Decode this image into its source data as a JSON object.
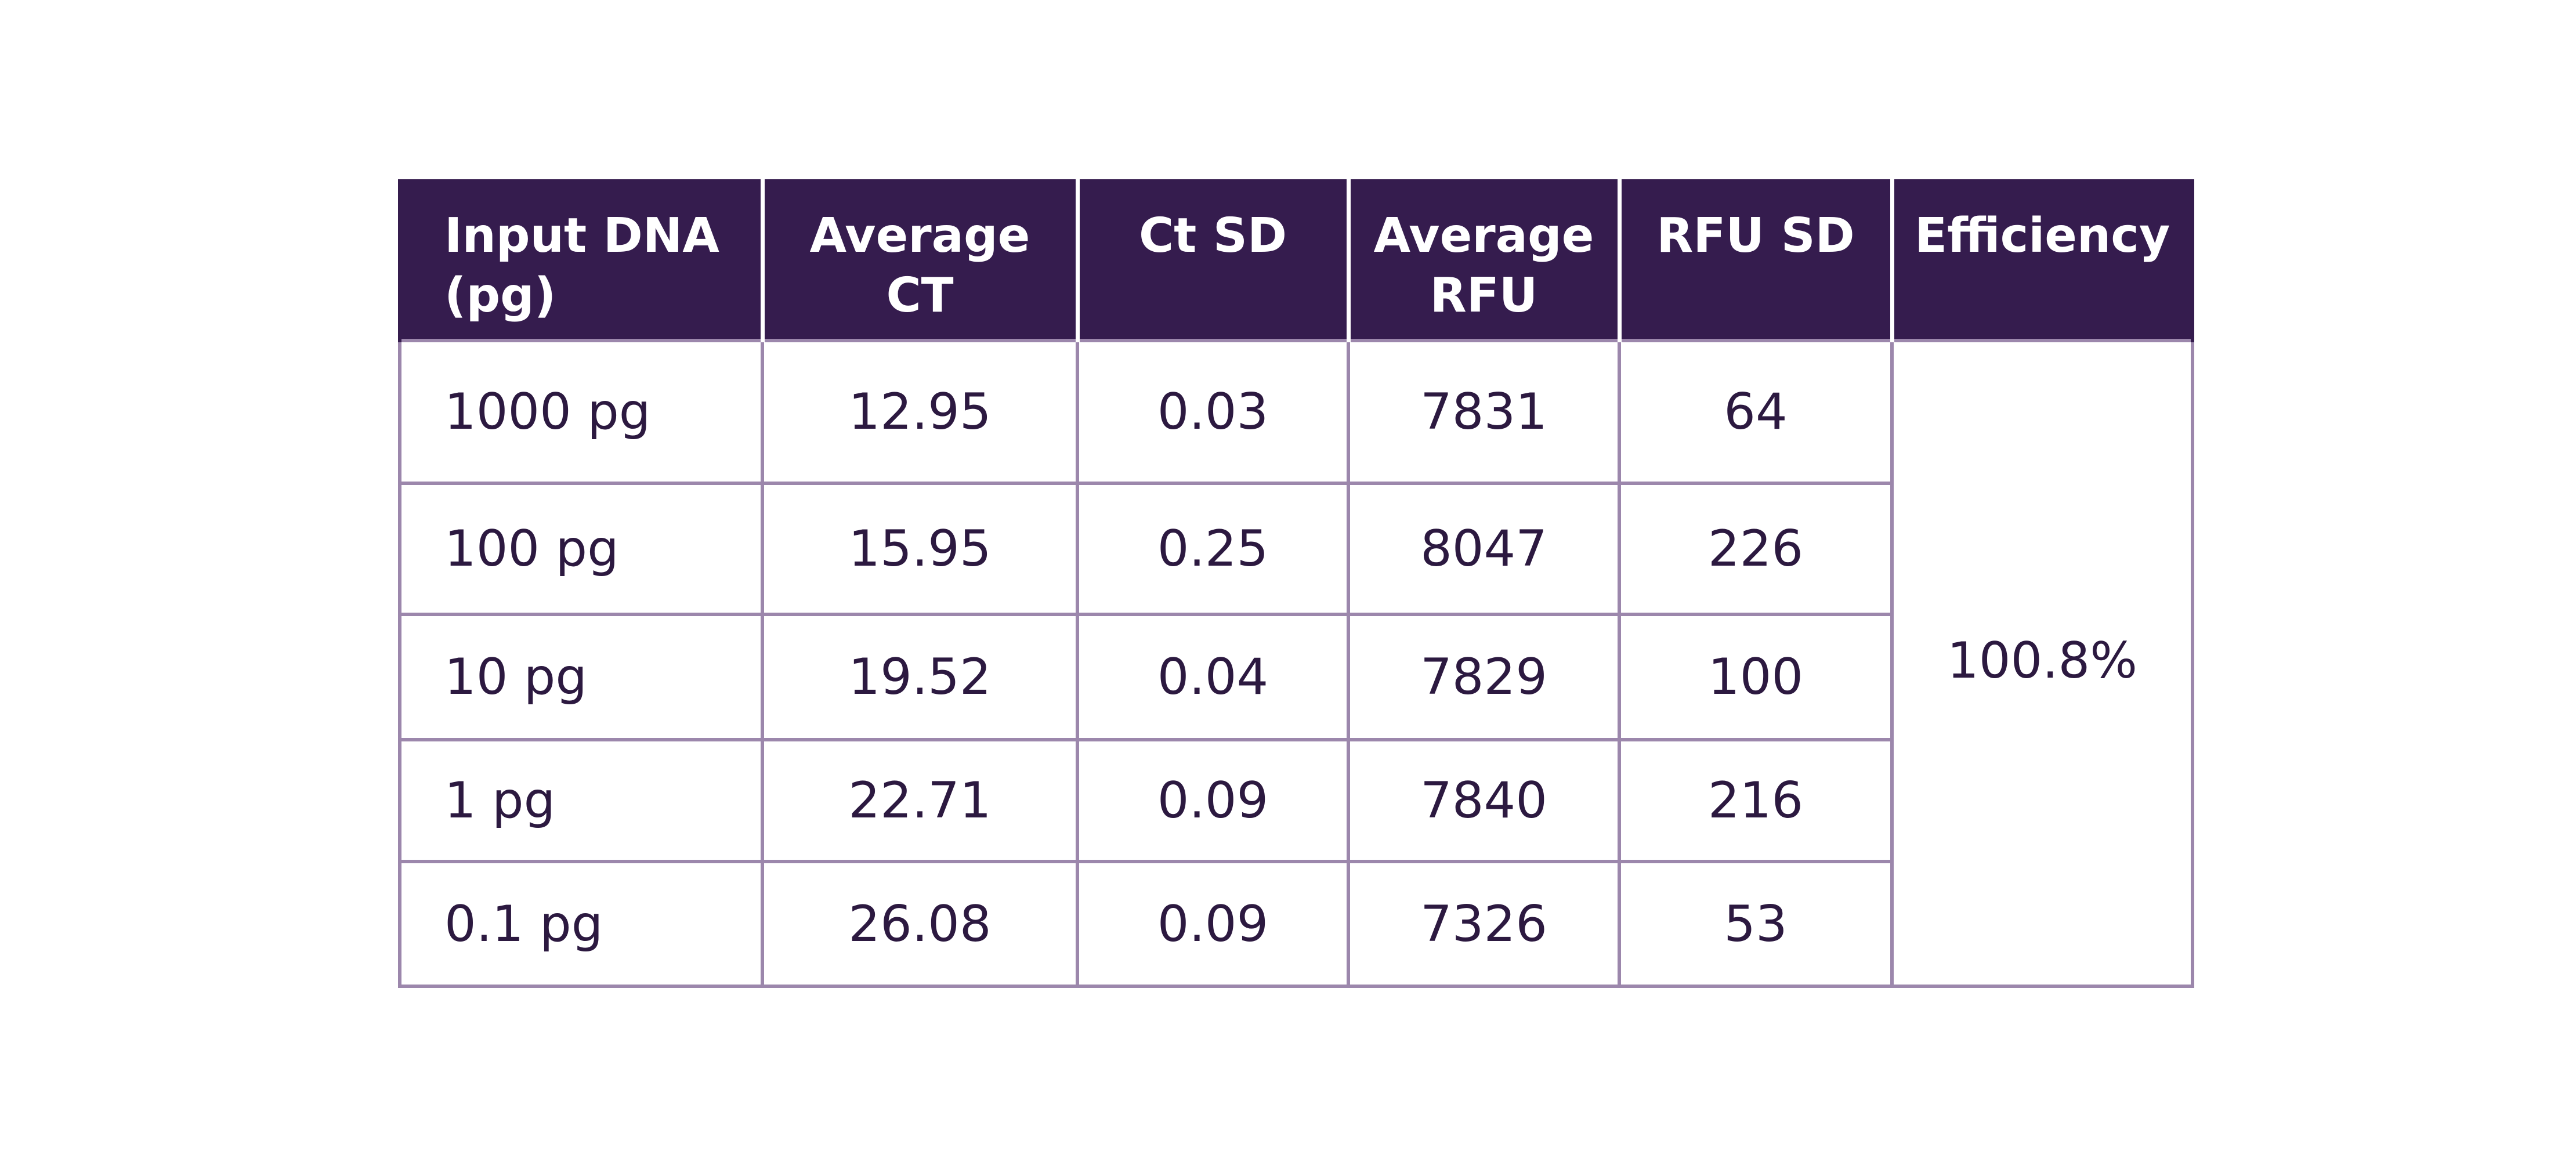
{
  "table": {
    "headers": [
      "Input DNA\n(pg)",
      "Average\nCT",
      "Ct SD",
      "Average\nRFU",
      "RFU SD",
      "Efficiency"
    ],
    "rows": [
      [
        "1000 pg",
        "12.95",
        "0.03",
        "7831",
        "64"
      ],
      [
        "100 pg",
        "15.95",
        "0.25",
        "8047",
        "226"
      ],
      [
        "10 pg",
        "19.52",
        "0.04",
        "7829",
        "100"
      ],
      [
        "1 pg",
        "22.71",
        "0.09",
        "7840",
        "216"
      ],
      [
        "0.1 pg",
        "26.08",
        "0.09",
        "7326",
        "53"
      ]
    ],
    "efficiency": "100.8%",
    "colors": {
      "header_bg": "#351c4e",
      "header_text": "#ffffff",
      "border": "#9c87ac",
      "cell_text": "#2c1940"
    }
  }
}
